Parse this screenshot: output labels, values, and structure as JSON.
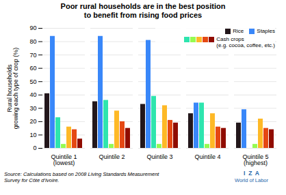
{
  "chart_data": {
    "type": "bar",
    "title": "Poor rural households are in the best position\nto benefit from rising food prices",
    "ylabel": "Rural households\ngrowing each type of crop (%)",
    "categories": [
      "Quintile 1\n(lowest)",
      "Quintile 2",
      "Quintile 3",
      "Quintile 4",
      "Quintile 5\n(highest)"
    ],
    "series": [
      {
        "name": "Rice",
        "values": [
          41,
          35,
          33,
          26,
          19
        ]
      },
      {
        "name": "Staples",
        "values": [
          84,
          84,
          81,
          34,
          29
        ]
      },
      {
        "name": null,
        "values": [
          23,
          36,
          39,
          34,
          0
        ]
      },
      {
        "name": null,
        "values": [
          3,
          3,
          3,
          3,
          3
        ]
      },
      {
        "name": null,
        "values": [
          16,
          28,
          32,
          26,
          22
        ]
      },
      {
        "name": null,
        "values": [
          14,
          20,
          21,
          16,
          15
        ]
      },
      {
        "name": "Cash crops\n(e.g. cocoa, coffee, etc.)",
        "values": [
          7,
          15,
          19,
          15,
          14
        ]
      }
    ],
    "ylim": [
      0,
      90
    ],
    "yticks": [
      0,
      10,
      20,
      30,
      40,
      50,
      60,
      70,
      80,
      90
    ],
    "grid": true,
    "legend": "upper right",
    "source": [
      "Source: Calculations based on 2008 Living Standards Measurement",
      "Survey for Côte d’Ivoire."
    ],
    "annotations": [
      "I  Z  A",
      "World of Labor"
    ]
  }
}
